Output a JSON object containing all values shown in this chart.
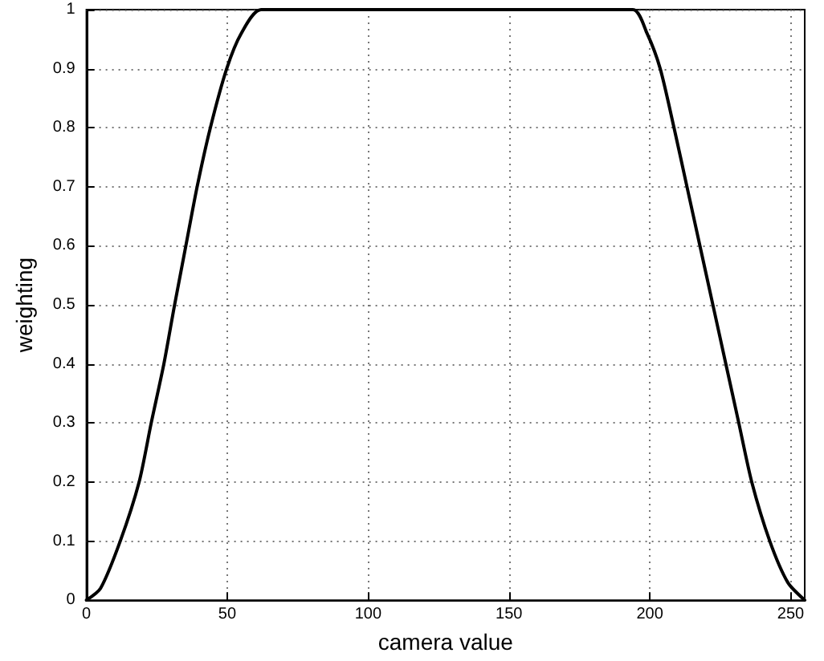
{
  "chart_data": {
    "type": "line",
    "xlabel": "camera value",
    "ylabel": "weighting",
    "x": [
      0,
      5,
      12,
      18.7,
      23,
      27.5,
      31.3,
      35.3,
      39.3,
      44,
      49.8,
      55,
      62,
      194,
      199,
      203.7,
      208.6,
      213.2,
      217.8,
      222.4,
      227,
      231.6,
      236.2,
      242.6,
      249,
      255
    ],
    "series": [
      {
        "color": "#000000",
        "values": [
          0,
          0.02,
          0.1,
          0.2,
          0.3,
          0.4,
          0.5,
          0.6,
          0.7,
          0.8,
          0.9,
          0.96,
          1,
          1,
          0.96,
          0.9,
          0.8,
          0.7,
          0.6,
          0.5,
          0.4,
          0.3,
          0.2,
          0.1,
          0.03,
          0
        ]
      }
    ],
    "xlim": [
      0,
      255
    ],
    "xticks": [
      0,
      50,
      100,
      150,
      200,
      250
    ],
    "ylim": [
      0,
      1
    ],
    "yticks": [
      0,
      0.1,
      0.2,
      0.3,
      0.4,
      0.5,
      0.6,
      0.7,
      0.8,
      0.9,
      1
    ],
    "grid": true,
    "marker": "none",
    "line_style": "solid"
  }
}
